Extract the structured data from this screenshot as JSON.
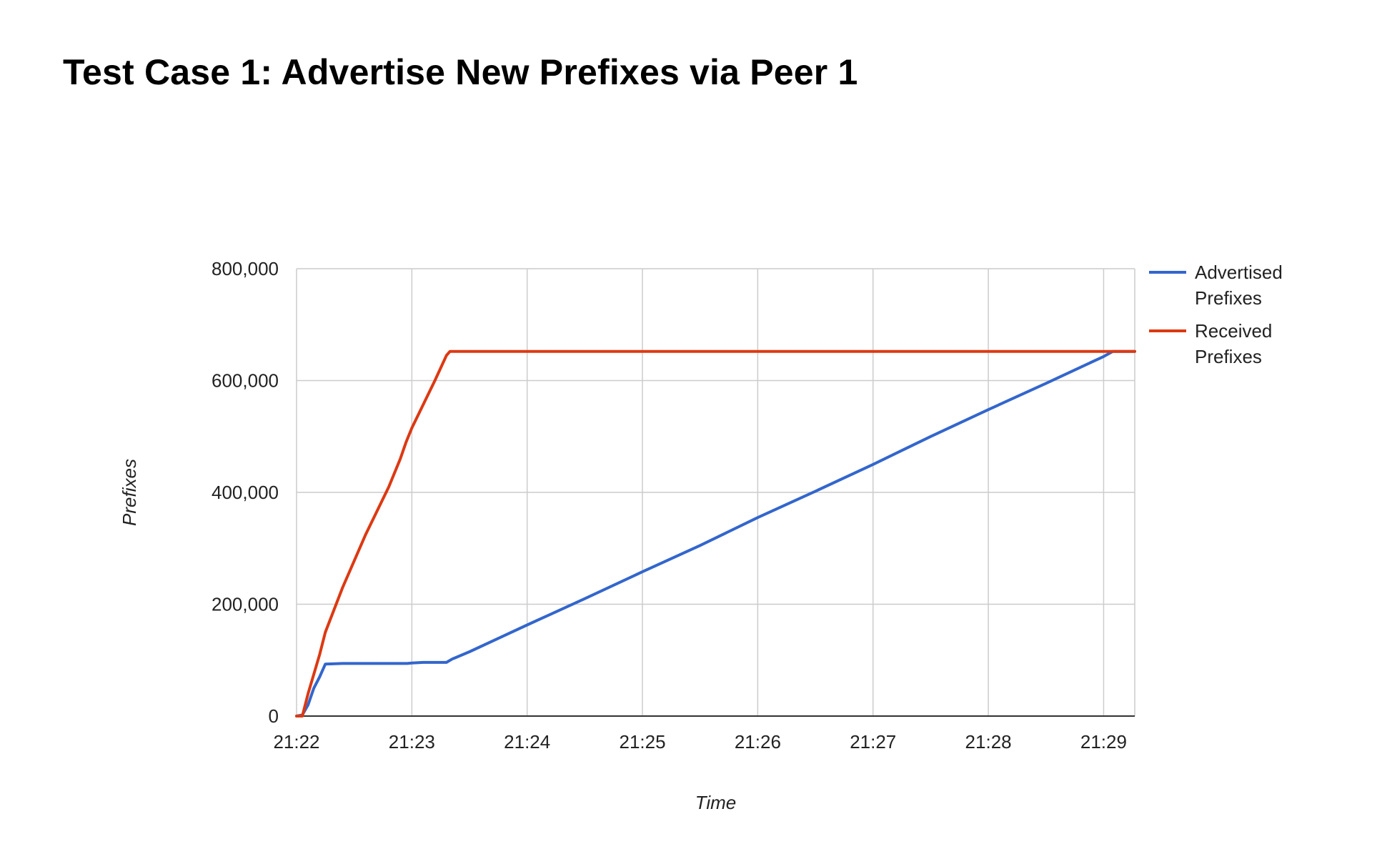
{
  "chart_data": {
    "type": "line",
    "title": "Test Case 1: Advertise New Prefixes via Peer 1",
    "xlabel": "Time",
    "ylabel": "Prefixes",
    "x_start": "21:22",
    "xlim": [
      0,
      7.27
    ],
    "x_ticks": [
      {
        "value": 0,
        "label": "21:22"
      },
      {
        "value": 1,
        "label": "21:23"
      },
      {
        "value": 2,
        "label": "21:24"
      },
      {
        "value": 3,
        "label": "21:25"
      },
      {
        "value": 4,
        "label": "21:26"
      },
      {
        "value": 5,
        "label": "21:27"
      },
      {
        "value": 6,
        "label": "21:28"
      },
      {
        "value": 7,
        "label": "21:29"
      }
    ],
    "ylim": [
      0,
      800000
    ],
    "y_ticks": [
      {
        "value": 0,
        "label": "0"
      },
      {
        "value": 200000,
        "label": "200,000"
      },
      {
        "value": 400000,
        "label": "400,000"
      },
      {
        "value": 600000,
        "label": "600,000"
      },
      {
        "value": 800000,
        "label": "800,000"
      }
    ],
    "grid": true,
    "legend_position": "right",
    "series": [
      {
        "name": "Advertised Prefixes",
        "color": "#3366cc",
        "points": [
          [
            0.0,
            0
          ],
          [
            0.05,
            2000
          ],
          [
            0.1,
            20000
          ],
          [
            0.15,
            50000
          ],
          [
            0.2,
            70000
          ],
          [
            0.25,
            93000
          ],
          [
            0.4,
            94000
          ],
          [
            0.96,
            94000
          ],
          [
            1.0,
            95000
          ],
          [
            1.1,
            96000
          ],
          [
            1.3,
            96000
          ],
          [
            1.35,
            102000
          ],
          [
            1.5,
            115000
          ],
          [
            2.0,
            163000
          ],
          [
            2.5,
            210000
          ],
          [
            3.0,
            258000
          ],
          [
            3.5,
            305000
          ],
          [
            4.0,
            355000
          ],
          [
            4.5,
            402000
          ],
          [
            5.0,
            450000
          ],
          [
            5.5,
            500000
          ],
          [
            6.0,
            548000
          ],
          [
            6.5,
            595000
          ],
          [
            7.0,
            643000
          ],
          [
            7.08,
            652000
          ],
          [
            7.27,
            652000
          ]
        ]
      },
      {
        "name": "Received Prefixes",
        "color": "#dc3912",
        "points": [
          [
            0.0,
            0
          ],
          [
            0.05,
            0
          ],
          [
            0.1,
            40000
          ],
          [
            0.2,
            110000
          ],
          [
            0.25,
            150000
          ],
          [
            0.4,
            230000
          ],
          [
            0.6,
            325000
          ],
          [
            0.8,
            410000
          ],
          [
            0.9,
            460000
          ],
          [
            0.95,
            490000
          ],
          [
            1.0,
            515000
          ],
          [
            1.2,
            600000
          ],
          [
            1.3,
            645000
          ],
          [
            1.33,
            652000
          ],
          [
            7.27,
            652000
          ]
        ]
      }
    ]
  }
}
